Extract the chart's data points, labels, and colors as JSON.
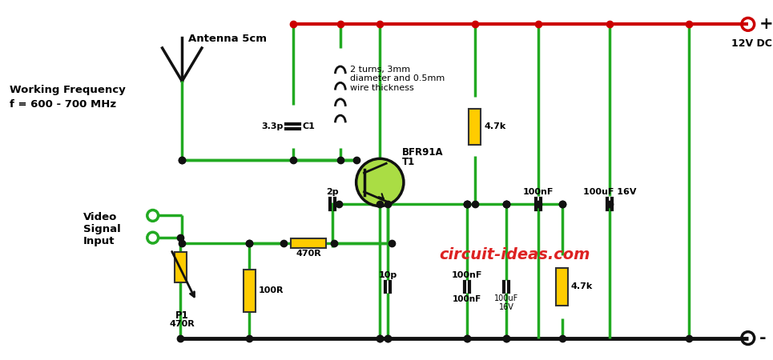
{
  "bg_color": "#ffffff",
  "wire_green": "#22aa22",
  "wire_red": "#cc0000",
  "wire_black": "#111111",
  "comp_fill": "#ffcc00",
  "trans_fill": "#aadd44",
  "label_working_freq": "Working Frequency",
  "label_freq_value": "f = 600 - 700 MHz",
  "label_antenna": "Antenna 5cm",
  "label_t1": "T1",
  "label_t1_type": "BFR91A",
  "label_inductor": "2 turns, 3mm\ndiameter and 0.5mm\nwire thickness",
  "label_3p3": "3.3p",
  "label_c1": "C1",
  "label_2p": "2p",
  "label_10p": "10p",
  "label_470r": "470R",
  "label_100r": "100R",
  "label_p1": "P1",
  "label_p1_val": "470R",
  "label_4k7_top": "4.7k",
  "label_4k7_bot": "4.7k",
  "label_100nf_top": "100nF",
  "label_100nf_bot": "100nF",
  "label_100uf_top": "100uF 16V",
  "label_100uf_bot": "100uF\n16V",
  "label_12vdc": "12V DC",
  "label_vcc": "+",
  "label_gnd": "-",
  "label_video": "Video\nSignal\nInput",
  "label_circuit": "circuit-ideas.com",
  "circuit_color": "#dd2222"
}
